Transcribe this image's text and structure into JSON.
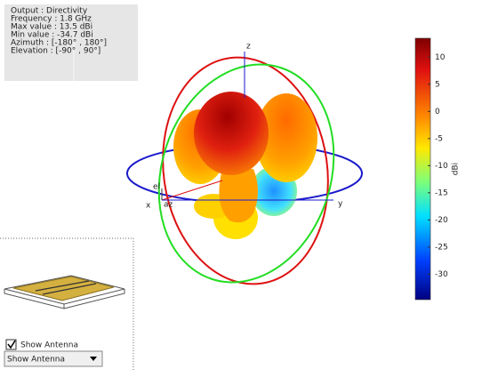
{
  "chart_data": {
    "type": "radiation-pattern",
    "info": [
      "Output : Directivity",
      "Frequency : 1.8 GHz",
      "Max value : 13.5 dBi",
      "Min value : -34.7 dBi",
      "Azimuth : [-180° , 180°]",
      "Elevation : [-90° , 90°]"
    ],
    "axes": {
      "x": "x",
      "y": "y",
      "z": "z",
      "el": "el",
      "az": "az"
    },
    "colorbar": {
      "label": "dBi",
      "lim": [
        -34.7,
        13.5
      ],
      "ticks": [
        10,
        5,
        0,
        -5,
        -10,
        -15,
        -20,
        -25,
        -30
      ]
    }
  },
  "controls": {
    "checkbox": "Show Antenna",
    "dropdown": "Show Antenna"
  }
}
